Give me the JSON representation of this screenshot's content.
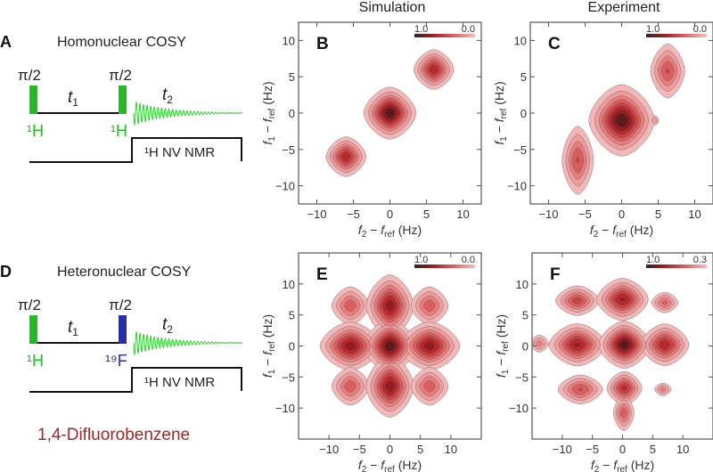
{
  "column_titles": {
    "simulation": "Simulation",
    "experiment": "Experiment"
  },
  "pulse_A": {
    "panel": "A",
    "title": "Homonuclear COSY",
    "pulse1_angle": "π/2",
    "pulse1_nucleus": "¹H",
    "pulse2_angle": "π/2",
    "pulse2_nucleus": "¹H",
    "t1_var": "t",
    "t1_sub": "1",
    "t2_var": "t",
    "t2_sub": "2",
    "detection": "¹H NV NMR",
    "colors": {
      "pulse1": "#22bb22",
      "pulse2": "#22bb22",
      "fid": "#33cc33"
    }
  },
  "pulse_D": {
    "panel": "D",
    "title": "Heteronuclear COSY",
    "pulse1_angle": "π/2",
    "pulse1_nucleus": "¹H",
    "pulse2_angle": "π/2",
    "pulse2_nucleus": "¹⁹F",
    "t1_var": "t",
    "t1_sub": "1",
    "t2_var": "t",
    "t2_sub": "2",
    "detection": "¹H NV NMR",
    "colors": {
      "pulse1": "#22bb22",
      "pulse2": "#2a2ab8",
      "fid": "#33cc33"
    },
    "molecule": "1,4-Difluorobenzene",
    "molecule_color": "#9b2a2a"
  },
  "chart_data": [
    {
      "type": "heatmap",
      "panel": "B",
      "column": "Simulation",
      "xlabel": [
        "f",
        "2",
        " − ",
        "f",
        "ref",
        " (Hz)"
      ],
      "ylabel": [
        "f",
        "1",
        " − ",
        "f",
        "ref",
        " (Hz)"
      ],
      "xlim": [
        -12.5,
        12.5
      ],
      "ylim": [
        -12.5,
        12.5
      ],
      "xticks": [
        -10,
        -5,
        0,
        5,
        10
      ],
      "yticks": [
        -10,
        -5,
        0,
        5,
        10
      ],
      "colorbar": {
        "max_label": "1.0",
        "min_label": "0.0"
      },
      "peaks": [
        {
          "x": -6,
          "y": -6,
          "intensity": 0.75,
          "sx": 1.3,
          "sy": 1.3
        },
        {
          "x": 0,
          "y": 0,
          "intensity": 1.0,
          "sx": 1.6,
          "sy": 1.6
        },
        {
          "x": 6,
          "y": 6,
          "intensity": 0.75,
          "sx": 1.3,
          "sy": 1.3
        }
      ]
    },
    {
      "type": "heatmap",
      "panel": "C",
      "column": "Experiment",
      "xlabel": [
        "f",
        "2",
        " − ",
        "f",
        "ref",
        " (Hz)"
      ],
      "ylabel": [
        "f",
        "1",
        " − ",
        "f",
        "ref",
        " (Hz)"
      ],
      "xlim": [
        -12.5,
        12.5
      ],
      "ylim": [
        -12.5,
        12.5
      ],
      "xticks": [
        -10,
        -5,
        0,
        5,
        10
      ],
      "yticks": [
        -10,
        -5,
        0,
        5,
        10
      ],
      "colorbar": {
        "max_label": "1.0",
        "min_label": "0.0"
      },
      "peaks": [
        {
          "x": -6,
          "y": -6.5,
          "intensity": 0.55,
          "sx": 1.1,
          "sy": 2.4
        },
        {
          "x": 0,
          "y": -1,
          "intensity": 1.0,
          "sx": 2.0,
          "sy": 2.2
        },
        {
          "x": 6.3,
          "y": 5.8,
          "intensity": 0.55,
          "sx": 1.2,
          "sy": 1.9
        },
        {
          "x": 4.6,
          "y": -1,
          "intensity": 0.3,
          "sx": 0.3,
          "sy": 0.4
        }
      ]
    },
    {
      "type": "heatmap",
      "panel": "E",
      "column": "Simulation",
      "xlabel": [
        "f",
        "2",
        " − ",
        "f",
        "ref",
        " (Hz)"
      ],
      "ylabel": [
        "f",
        "1",
        " − ",
        "f",
        "ref",
        " (Hz)"
      ],
      "xlim": [
        -15,
        15
      ],
      "ylim": [
        -15,
        15
      ],
      "xticks": [
        -10,
        -5,
        0,
        5,
        10
      ],
      "yticks": [
        -10,
        -5,
        0,
        5,
        10
      ],
      "colorbar": {
        "max_label": "1.0",
        "min_label": "0.0"
      },
      "peaks": [
        {
          "x": -6.5,
          "y": 6.5,
          "intensity": 0.5,
          "sx": 1.6,
          "sy": 1.6
        },
        {
          "x": 0,
          "y": 6.5,
          "intensity": 0.85,
          "sx": 1.8,
          "sy": 2.3
        },
        {
          "x": 6.5,
          "y": 6.5,
          "intensity": 0.5,
          "sx": 1.6,
          "sy": 1.6
        },
        {
          "x": -6.5,
          "y": 0,
          "intensity": 0.85,
          "sx": 2.3,
          "sy": 1.8
        },
        {
          "x": 0,
          "y": 0,
          "intensity": 1.0,
          "sx": 1.9,
          "sy": 1.9
        },
        {
          "x": 6.5,
          "y": 0,
          "intensity": 0.85,
          "sx": 2.3,
          "sy": 1.8
        },
        {
          "x": -6.5,
          "y": -6.5,
          "intensity": 0.5,
          "sx": 1.6,
          "sy": 1.6
        },
        {
          "x": 0,
          "y": -6.5,
          "intensity": 0.85,
          "sx": 1.8,
          "sy": 2.3
        },
        {
          "x": 6.5,
          "y": -6.5,
          "intensity": 0.5,
          "sx": 1.6,
          "sy": 1.6
        }
      ]
    },
    {
      "type": "heatmap",
      "panel": "F",
      "column": "Experiment",
      "xlabel": [
        "f",
        "2",
        " − ",
        "f",
        "ref",
        " (Hz)"
      ],
      "ylabel": [
        "f",
        "1",
        " − ",
        "f",
        "ref",
        " (Hz)"
      ],
      "xlim": [
        -15,
        15
      ],
      "ylim": [
        -15,
        15
      ],
      "xticks": [
        -10,
        -5,
        0,
        5,
        10
      ],
      "yticks": [
        -10,
        -5,
        0,
        5,
        10
      ],
      "colorbar": {
        "max_label": "1.0",
        "min_label": "0.3"
      },
      "peaks": [
        {
          "x": -7.5,
          "y": 7.3,
          "intensity": 0.6,
          "sx": 1.8,
          "sy": 1.2
        },
        {
          "x": 0,
          "y": 7.5,
          "intensity": 0.8,
          "sx": 2.0,
          "sy": 1.6
        },
        {
          "x": 7,
          "y": 7,
          "intensity": 0.45,
          "sx": 1.2,
          "sy": 0.9
        },
        {
          "x": -13.8,
          "y": 0.4,
          "intensity": 0.35,
          "sx": 0.9,
          "sy": 0.8
        },
        {
          "x": -7.5,
          "y": 0.2,
          "intensity": 0.8,
          "sx": 2.2,
          "sy": 1.6
        },
        {
          "x": 0.3,
          "y": 0.2,
          "intensity": 1.0,
          "sx": 1.9,
          "sy": 1.7
        },
        {
          "x": 7,
          "y": 0.2,
          "intensity": 0.75,
          "sx": 1.9,
          "sy": 1.6
        },
        {
          "x": -7,
          "y": -7,
          "intensity": 0.55,
          "sx": 1.9,
          "sy": 1.2
        },
        {
          "x": 0.3,
          "y": -6.8,
          "intensity": 0.7,
          "sx": 1.4,
          "sy": 1.3
        },
        {
          "x": 0.2,
          "y": -10.8,
          "intensity": 0.5,
          "sx": 0.9,
          "sy": 1.5
        },
        {
          "x": 6.7,
          "y": -7,
          "intensity": 0.35,
          "sx": 0.8,
          "sy": 0.6
        }
      ]
    }
  ]
}
